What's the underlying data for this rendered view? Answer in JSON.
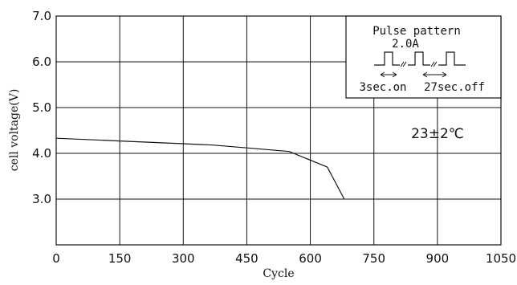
{
  "chart_data": {
    "type": "line",
    "title": "",
    "xlabel": "Cycle",
    "ylabel": "cell voltage(V)",
    "xlim": [
      0,
      1050
    ],
    "ylim": [
      2.0,
      7.0
    ],
    "x_ticks": [
      0,
      150,
      300,
      450,
      600,
      750,
      900,
      1050
    ],
    "x_tick_labels": [
      "0",
      "150",
      "300",
      "450",
      "600",
      "750",
      "900",
      "1050"
    ],
    "y_ticks": [
      3.0,
      4.0,
      5.0,
      6.0,
      7.0
    ],
    "y_tick_labels": [
      "3.0",
      "4.0",
      "5.0",
      "6.0",
      "7.0"
    ],
    "grid": true,
    "series": [
      {
        "x": [
          0,
          150,
          300,
          370,
          450,
          550,
          640,
          680
        ],
        "y": [
          4.33,
          4.27,
          4.21,
          4.18,
          4.12,
          4.04,
          3.7,
          3.0
        ]
      }
    ],
    "annotations": {
      "temperature": "23±2℃",
      "inset_title": "Pulse pattern",
      "inset_current": "2.0A",
      "inset_on": "3sec.on",
      "inset_off": "27sec.off"
    }
  }
}
